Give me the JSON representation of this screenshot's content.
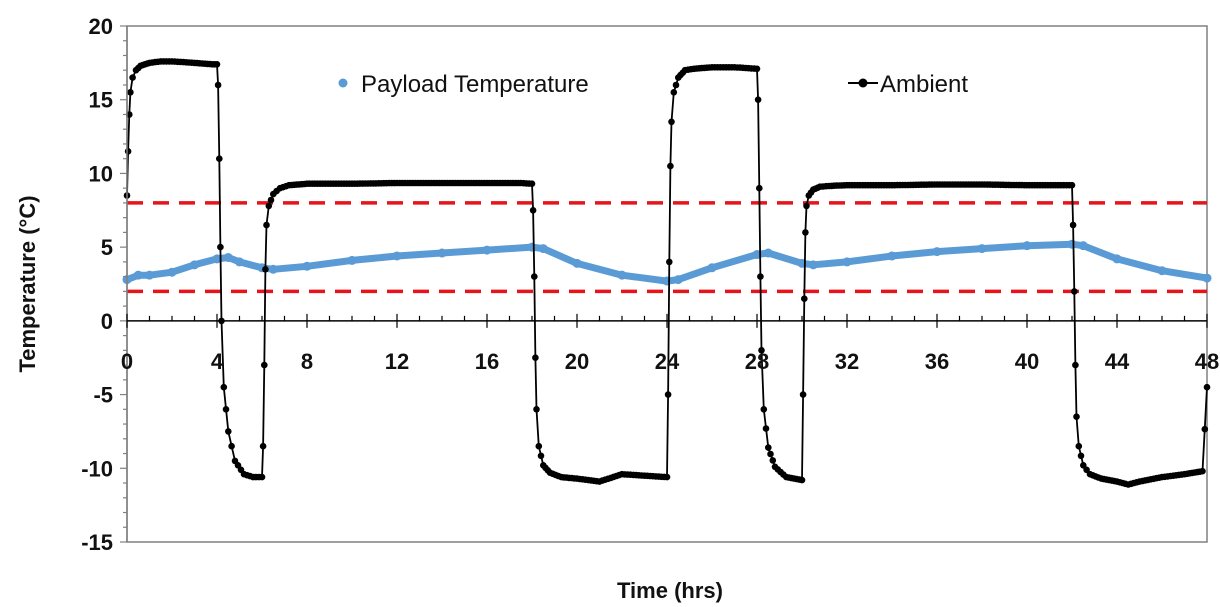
{
  "chart_data": {
    "type": "line",
    "title": "",
    "xlabel": "Time (hrs)",
    "ylabel": "Temperature (°C)",
    "xlim": [
      0,
      48
    ],
    "ylim": [
      -15,
      20
    ],
    "x_ticks": [
      0,
      4,
      8,
      12,
      16,
      20,
      24,
      28,
      32,
      36,
      40,
      44,
      48
    ],
    "y_ticks": [
      -15,
      -10,
      -5,
      0,
      5,
      10,
      15,
      20
    ],
    "grid": false,
    "legend_position": "top",
    "reference_lines": [
      {
        "y": 8,
        "color": "#e8141b",
        "style": "dashed"
      },
      {
        "y": 2,
        "color": "#e8141b",
        "style": "dashed"
      }
    ],
    "series": [
      {
        "name": "Payload Temperature",
        "color": "#5b9bd5",
        "marker": "circle",
        "x": [
          0,
          0.5,
          1,
          2,
          3,
          4,
          4.5,
          5,
          6,
          6.5,
          8,
          10,
          12,
          14,
          16,
          18,
          18.5,
          20,
          22,
          24,
          24.5,
          26,
          28,
          28.5,
          30,
          30.5,
          32,
          34,
          36,
          38,
          40,
          42,
          42.5,
          44,
          46,
          48
        ],
        "y": [
          2.8,
          3.1,
          3.1,
          3.3,
          3.8,
          4.2,
          4.3,
          4.0,
          3.6,
          3.5,
          3.7,
          4.1,
          4.4,
          4.6,
          4.8,
          5.0,
          4.9,
          3.9,
          3.1,
          2.7,
          2.8,
          3.6,
          4.5,
          4.6,
          3.9,
          3.8,
          4.0,
          4.4,
          4.7,
          4.9,
          5.1,
          5.2,
          5.1,
          4.2,
          3.4,
          2.9
        ]
      },
      {
        "name": "Ambient",
        "color": "#000000",
        "marker": "circle",
        "x": [
          0,
          0.05,
          0.1,
          0.15,
          0.25,
          0.4,
          0.6,
          0.8,
          1.0,
          1.5,
          2.0,
          3.0,
          3.8,
          4.0,
          4.05,
          4.1,
          4.15,
          4.2,
          4.3,
          4.5,
          4.8,
          5.2,
          5.6,
          6.0,
          6.05,
          6.1,
          6.15,
          6.2,
          6.3,
          6.5,
          6.8,
          7.2,
          8,
          10,
          12,
          14,
          16,
          17.5,
          18.0,
          18.05,
          18.1,
          18.15,
          18.2,
          18.3,
          18.5,
          18.8,
          19.3,
          20,
          21,
          22,
          23,
          24.0,
          24.05,
          24.1,
          24.15,
          24.2,
          24.3,
          24.5,
          24.8,
          25.2,
          26,
          27,
          28.0,
          28.05,
          28.1,
          28.15,
          28.2,
          28.3,
          28.5,
          28.8,
          29.3,
          30.0,
          30.05,
          30.1,
          30.15,
          30.2,
          30.3,
          30.5,
          30.8,
          31.2,
          32,
          34,
          36,
          38,
          40,
          41.5,
          42.0,
          42.05,
          42.1,
          42.15,
          42.2,
          42.3,
          42.5,
          42.8,
          43.3,
          44,
          44.5,
          45,
          46,
          47,
          47.8,
          48
        ],
        "y": [
          8.5,
          11.5,
          14,
          15.5,
          16.5,
          17.0,
          17.3,
          17.4,
          17.5,
          17.6,
          17.6,
          17.5,
          17.4,
          17.4,
          16.0,
          11.0,
          5.0,
          0,
          -4.5,
          -7.5,
          -9.5,
          -10.4,
          -10.6,
          -10.6,
          -8.5,
          -3.0,
          3.5,
          6.5,
          7.8,
          8.6,
          9.0,
          9.2,
          9.3,
          9.3,
          9.35,
          9.35,
          9.35,
          9.35,
          9.3,
          7.5,
          3.0,
          -2.5,
          -6.0,
          -8.5,
          -9.8,
          -10.3,
          -10.6,
          -10.7,
          -10.9,
          -10.4,
          -10.5,
          -10.6,
          -5.0,
          4.0,
          10.5,
          13.5,
          15.5,
          16.5,
          17.0,
          17.1,
          17.2,
          17.2,
          17.1,
          15.0,
          9.0,
          3.0,
          -2.0,
          -6.0,
          -8.6,
          -9.9,
          -10.6,
          -10.8,
          -5.0,
          1.5,
          6.0,
          7.8,
          8.5,
          8.9,
          9.1,
          9.15,
          9.2,
          9.2,
          9.25,
          9.25,
          9.2,
          9.2,
          9.2,
          6.5,
          2.0,
          -3.0,
          -6.5,
          -8.5,
          -9.8,
          -10.4,
          -10.7,
          -10.9,
          -11.1,
          -10.9,
          -10.6,
          -10.4,
          -10.2,
          -4.5
        ]
      }
    ]
  }
}
